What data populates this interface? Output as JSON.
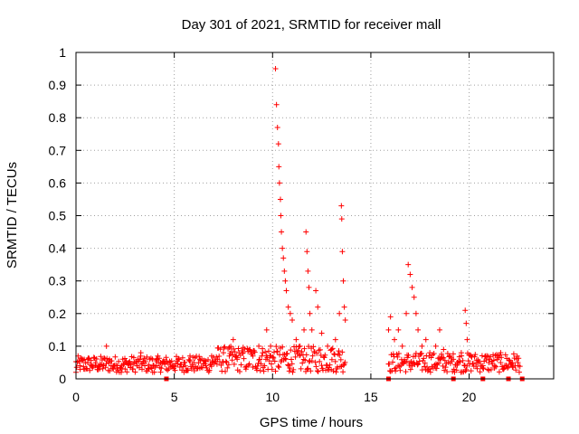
{
  "chart_data": {
    "type": "scatter",
    "title": "Day 301 of 2021, SRMTID for receiver mall",
    "xlabel": "GPS time / hours",
    "ylabel": "SRMTID / TECUs",
    "xlim": [
      0,
      24.3
    ],
    "ylim": [
      0,
      1
    ],
    "grid": true,
    "marker": "+",
    "color": "#ff0000",
    "xticks": [
      0,
      5,
      10,
      15,
      20
    ],
    "xtick_labels": [
      "0",
      "5",
      "10",
      "15",
      "20"
    ],
    "yticks": [
      0,
      0.1,
      0.2,
      0.3,
      0.4,
      0.5,
      0.6,
      0.7,
      0.8,
      0.9,
      1
    ],
    "ytick_labels": [
      "0",
      "0.1",
      "0.2",
      "0.3",
      "0.4",
      "0.5",
      "0.6",
      "0.7",
      "0.8",
      "0.9",
      "1"
    ],
    "series": [
      {
        "name": "SRMTID",
        "points": [
          [
            0.0,
            0.02
          ],
          [
            0.2,
            0.04
          ],
          [
            0.4,
            0.03
          ],
          [
            0.6,
            0.05
          ],
          [
            0.8,
            0.04
          ],
          [
            1.0,
            0.05
          ],
          [
            1.2,
            0.03
          ],
          [
            1.4,
            0.04
          ],
          [
            1.55,
            0.1
          ],
          [
            1.7,
            0.06
          ],
          [
            1.9,
            0.03
          ],
          [
            2.1,
            0.04
          ],
          [
            2.3,
            0.02
          ],
          [
            2.5,
            0.03
          ],
          [
            2.7,
            0.05
          ],
          [
            2.9,
            0.03
          ],
          [
            3.1,
            0.04
          ],
          [
            3.3,
            0.08
          ],
          [
            3.5,
            0.04
          ],
          [
            3.7,
            0.03
          ],
          [
            3.9,
            0.02
          ],
          [
            4.1,
            0.04
          ],
          [
            4.3,
            0.05
          ],
          [
            4.6,
            0.03
          ],
          [
            4.8,
            0.05
          ],
          [
            5.0,
            0.04
          ],
          [
            5.2,
            0.06
          ],
          [
            5.5,
            0.05
          ],
          [
            5.8,
            0.07
          ],
          [
            6.0,
            0.05
          ],
          [
            6.3,
            0.06
          ],
          [
            6.6,
            0.04
          ],
          [
            6.9,
            0.07
          ],
          [
            7.2,
            0.06
          ],
          [
            7.5,
            0.08
          ],
          [
            7.8,
            0.07
          ],
          [
            8.0,
            0.12
          ],
          [
            8.2,
            0.06
          ],
          [
            8.5,
            0.08
          ],
          [
            8.8,
            0.09
          ],
          [
            9.0,
            0.07
          ],
          [
            9.3,
            0.1
          ],
          [
            9.5,
            0.08
          ],
          [
            9.7,
            0.15
          ],
          [
            9.9,
            0.1
          ],
          [
            10.15,
            0.95
          ],
          [
            10.2,
            0.84
          ],
          [
            10.25,
            0.77
          ],
          [
            10.3,
            0.72
          ],
          [
            10.32,
            0.65
          ],
          [
            10.35,
            0.6
          ],
          [
            10.4,
            0.55
          ],
          [
            10.42,
            0.5
          ],
          [
            10.45,
            0.45
          ],
          [
            10.5,
            0.4
          ],
          [
            10.55,
            0.37
          ],
          [
            10.6,
            0.33
          ],
          [
            10.65,
            0.3
          ],
          [
            10.7,
            0.27
          ],
          [
            10.8,
            0.22
          ],
          [
            10.9,
            0.2
          ],
          [
            11.0,
            0.18
          ],
          [
            11.2,
            0.12
          ],
          [
            11.4,
            0.1
          ],
          [
            11.6,
            0.15
          ],
          [
            11.7,
            0.45
          ],
          [
            11.75,
            0.39
          ],
          [
            11.8,
            0.33
          ],
          [
            11.85,
            0.28
          ],
          [
            11.9,
            0.2
          ],
          [
            12.0,
            0.15
          ],
          [
            12.2,
            0.27
          ],
          [
            12.3,
            0.22
          ],
          [
            12.5,
            0.14
          ],
          [
            12.8,
            0.1
          ],
          [
            13.0,
            0.09
          ],
          [
            13.2,
            0.12
          ],
          [
            13.4,
            0.2
          ],
          [
            13.5,
            0.53
          ],
          [
            13.52,
            0.49
          ],
          [
            13.55,
            0.39
          ],
          [
            13.6,
            0.3
          ],
          [
            13.65,
            0.22
          ],
          [
            13.7,
            0.18
          ],
          [
            15.9,
            0.15
          ],
          [
            16.0,
            0.19
          ],
          [
            16.2,
            0.12
          ],
          [
            16.4,
            0.15
          ],
          [
            16.6,
            0.1
          ],
          [
            16.8,
            0.2
          ],
          [
            16.9,
            0.35
          ],
          [
            17.0,
            0.32
          ],
          [
            17.1,
            0.28
          ],
          [
            17.2,
            0.25
          ],
          [
            17.3,
            0.2
          ],
          [
            17.4,
            0.15
          ],
          [
            17.6,
            0.1
          ],
          [
            17.8,
            0.12
          ],
          [
            18.0,
            0.08
          ],
          [
            18.3,
            0.1
          ],
          [
            18.5,
            0.15
          ],
          [
            18.7,
            0.09
          ],
          [
            19.0,
            0.07
          ],
          [
            19.2,
            0.06
          ],
          [
            19.4,
            0.05
          ],
          [
            19.6,
            0.08
          ],
          [
            19.8,
            0.21
          ],
          [
            19.85,
            0.17
          ],
          [
            19.9,
            0.12
          ],
          [
            20.1,
            0.07
          ],
          [
            20.4,
            0.05
          ],
          [
            20.7,
            0.04
          ],
          [
            21.0,
            0.05
          ],
          [
            21.3,
            0.04
          ],
          [
            21.6,
            0.05
          ],
          [
            21.9,
            0.04
          ],
          [
            22.2,
            0.05
          ],
          [
            22.5,
            0.04
          ]
        ]
      }
    ],
    "gap_markers_x": [
      4.6,
      15.9,
      19.2,
      20.7,
      22.0,
      22.7
    ]
  }
}
